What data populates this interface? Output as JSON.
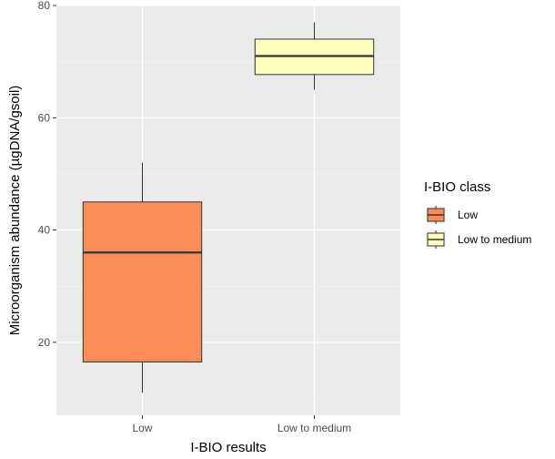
{
  "chart_data": {
    "type": "boxplot",
    "xlabel": "I-BIO results",
    "ylabel": "Microorganism abundance (µgDNA/gsoil)",
    "categories": [
      "Low",
      "Low to medium"
    ],
    "ylim": [
      7,
      80
    ],
    "yticks": [
      20,
      40,
      60,
      80
    ],
    "grid": true,
    "legend": {
      "title": "I-BIO class",
      "placement": "right",
      "entries": [
        {
          "label": "Low",
          "color": "#fc8d59"
        },
        {
          "label": "Low to medium",
          "color": "#ffffbf"
        }
      ]
    },
    "boxes": [
      {
        "category": "Low",
        "min": 11,
        "q1": 16.5,
        "median": 36,
        "q3": 45,
        "max": 52,
        "color": "#fc8d59"
      },
      {
        "category": "Low to medium",
        "min": 65,
        "q1": 67.7,
        "median": 71,
        "q3": 74,
        "max": 77,
        "color": "#ffffbf"
      }
    ]
  }
}
